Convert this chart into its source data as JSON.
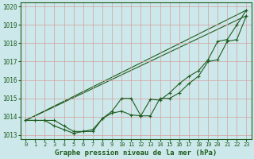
{
  "title": "Graphe pression niveau de la mer (hPa)",
  "background_color": "#cce8ea",
  "plot_bg_color": "#cce8ea",
  "grid_color": "#b0d4d6",
  "line_color": "#1e5c1e",
  "xlim": [
    -0.5,
    23.5
  ],
  "ylim": [
    1012.8,
    1020.2
  ],
  "xticks": [
    0,
    1,
    2,
    3,
    4,
    5,
    6,
    7,
    8,
    9,
    10,
    11,
    12,
    13,
    14,
    15,
    16,
    17,
    18,
    19,
    20,
    21,
    22,
    23
  ],
  "yticks": [
    1013,
    1014,
    1015,
    1016,
    1017,
    1018,
    1019,
    1020
  ],
  "series1_x": [
    0,
    1,
    2,
    3,
    4,
    5,
    6,
    7,
    8,
    9,
    10,
    11,
    12,
    13,
    14,
    15,
    16,
    17,
    18,
    19,
    20,
    21,
    22,
    23
  ],
  "series1_y": [
    1013.8,
    1013.8,
    1013.8,
    1013.8,
    1013.5,
    1013.2,
    1013.2,
    1013.2,
    1013.9,
    1014.2,
    1014.3,
    1014.1,
    1014.05,
    1014.95,
    1014.9,
    1015.3,
    1015.8,
    1016.2,
    1016.5,
    1017.1,
    1018.1,
    1018.2,
    1019.0,
    1019.8
  ],
  "series2_x": [
    0,
    1,
    2,
    3,
    4,
    5,
    6,
    7,
    8,
    9,
    10,
    11,
    12,
    13,
    14,
    15,
    16,
    17,
    18,
    19,
    20,
    21,
    22,
    23
  ],
  "series2_y": [
    1013.8,
    1013.8,
    1013.8,
    1013.5,
    1013.3,
    1013.1,
    1013.2,
    1013.3,
    1013.9,
    1014.3,
    1015.0,
    1015.0,
    1014.05,
    1014.05,
    1015.0,
    1015.0,
    1015.3,
    1015.8,
    1016.2,
    1017.0,
    1017.1,
    1018.1,
    1018.2,
    1019.5
  ],
  "series3_x": [
    0,
    23
  ],
  "series3_y": [
    1013.8,
    1019.8
  ],
  "series4_x": [
    0,
    23
  ],
  "series4_y": [
    1013.8,
    1019.5
  ]
}
